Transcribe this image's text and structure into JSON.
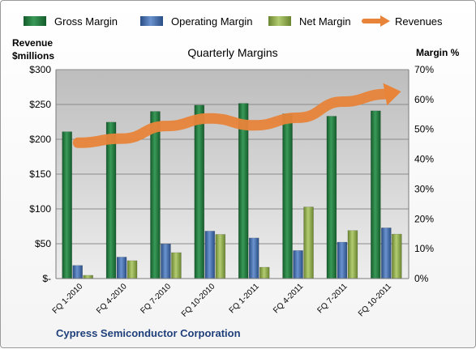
{
  "chart_data": {
    "type": "bar",
    "title": "Quarterly Margins",
    "company": "Cypress Semiconductor Corporation",
    "ylabel_left": [
      "Revenue",
      "$millions"
    ],
    "ylabel_right": "Margin %",
    "categories": [
      "FQ 1-2010",
      "FQ 4-2010",
      "FQ 7-2010",
      "FQ 10-2010",
      "FQ 1-2011",
      "FQ 4-2011",
      "FQ 7-2011",
      "FQ 10-2011"
    ],
    "left_axis": {
      "min": 0,
      "max": 300,
      "step": 50,
      "ticks": [
        "$-",
        "$50",
        "$100",
        "$150",
        "$200",
        "$250",
        "$300"
      ]
    },
    "right_axis": {
      "min": 0,
      "max": 70,
      "step": 10,
      "ticks": [
        "0%",
        "10%",
        "20%",
        "30%",
        "40%",
        "50%",
        "60%",
        "70%"
      ]
    },
    "grid": true,
    "legend_position": "top",
    "series": [
      {
        "name": "Gross Margin",
        "axis": "right",
        "color": "#1e7a3c",
        "values": [
          49.2,
          52.4,
          56.0,
          58.1,
          58.7,
          55.2,
          54.4,
          56.2
        ]
      },
      {
        "name": "Operating Margin",
        "axis": "right",
        "color": "#3b68a8",
        "values": [
          4.4,
          7.2,
          11.6,
          15.9,
          13.6,
          9.4,
          12.2,
          17.0
        ]
      },
      {
        "name": "Net Margin",
        "axis": "right",
        "color": "#8aa84a",
        "values": [
          1.1,
          6.0,
          8.7,
          14.8,
          3.8,
          24.0,
          16.1,
          14.9
        ]
      },
      {
        "name": "Revenues",
        "axis": "left",
        "color": "#e8843a",
        "type": "arrow-line",
        "values": [
          195,
          201,
          219,
          230,
          220,
          231,
          254,
          265
        ]
      }
    ]
  }
}
